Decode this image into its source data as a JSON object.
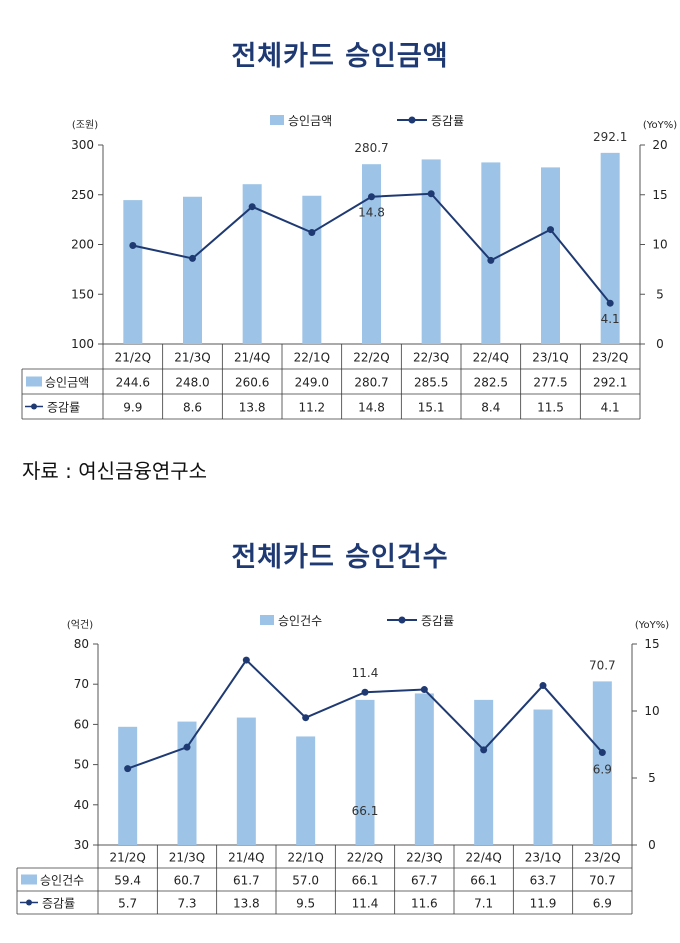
{
  "source_text": "자료 : 여신금융연구소",
  "chart_data": [
    {
      "type": "bar",
      "title": "전체카드  승인금액",
      "categories": [
        "21/2Q",
        "21/3Q",
        "21/4Q",
        "22/1Q",
        "22/2Q",
        "22/3Q",
        "22/4Q",
        "23/1Q",
        "23/2Q"
      ],
      "series": [
        {
          "name": "승인금액",
          "type": "bar",
          "axis": "left",
          "values": [
            244.6,
            248.0,
            260.6,
            249.0,
            280.7,
            285.5,
            282.5,
            277.5,
            292.1
          ]
        },
        {
          "name": "증감률",
          "type": "line",
          "axis": "right",
          "values": [
            9.9,
            8.6,
            13.8,
            11.2,
            14.8,
            15.1,
            8.4,
            11.5,
            4.1
          ]
        }
      ],
      "ylabel": "(조원)",
      "y2label": "(YoY%)",
      "ylim": [
        100,
        300
      ],
      "yticks": [
        100,
        150,
        200,
        250,
        300
      ],
      "y2lim": [
        0,
        20
      ],
      "y2ticks": [
        0,
        5,
        10,
        15,
        20
      ],
      "data_labels": [
        {
          "text": "280.7",
          "index": 4,
          "series": 0
        },
        {
          "text": "292.1",
          "index": 8,
          "series": 0
        },
        {
          "text": "14.8",
          "index": 4,
          "series": 1
        },
        {
          "text": "4.1",
          "index": 8,
          "series": 1
        }
      ],
      "legend_position": "top-center",
      "colors": {
        "bar": "#9dc3e6",
        "line": "#1f3a73",
        "axis": "#555555"
      }
    },
    {
      "type": "bar",
      "title": "전체카드  승인건수",
      "categories": [
        "21/2Q",
        "21/3Q",
        "21/4Q",
        "22/1Q",
        "22/2Q",
        "22/3Q",
        "22/4Q",
        "23/1Q",
        "23/2Q"
      ],
      "series": [
        {
          "name": "승인건수",
          "type": "bar",
          "axis": "left",
          "values": [
            59.4,
            60.7,
            61.7,
            57.0,
            66.1,
            67.7,
            66.1,
            63.7,
            70.7
          ]
        },
        {
          "name": "증감률",
          "type": "line",
          "axis": "right",
          "values": [
            5.7,
            7.3,
            13.8,
            9.5,
            11.4,
            11.6,
            7.1,
            11.9,
            6.9
          ]
        }
      ],
      "ylabel": "(억건)",
      "y2label": "(YoY%)",
      "ylim": [
        30,
        80
      ],
      "yticks": [
        30,
        40,
        50,
        60,
        70,
        80
      ],
      "y2lim": [
        0,
        15
      ],
      "y2ticks": [
        0,
        5,
        10,
        15
      ],
      "data_labels": [
        {
          "text": "11.4",
          "index": 4,
          "series": 1
        },
        {
          "text": "66.1",
          "index": 4,
          "series": 0
        },
        {
          "text": "70.7",
          "index": 8,
          "series": 0
        },
        {
          "text": "6.9",
          "index": 8,
          "series": 1
        }
      ],
      "legend_position": "top-center",
      "colors": {
        "bar": "#9dc3e6",
        "line": "#1f3a73",
        "axis": "#555555"
      }
    }
  ]
}
